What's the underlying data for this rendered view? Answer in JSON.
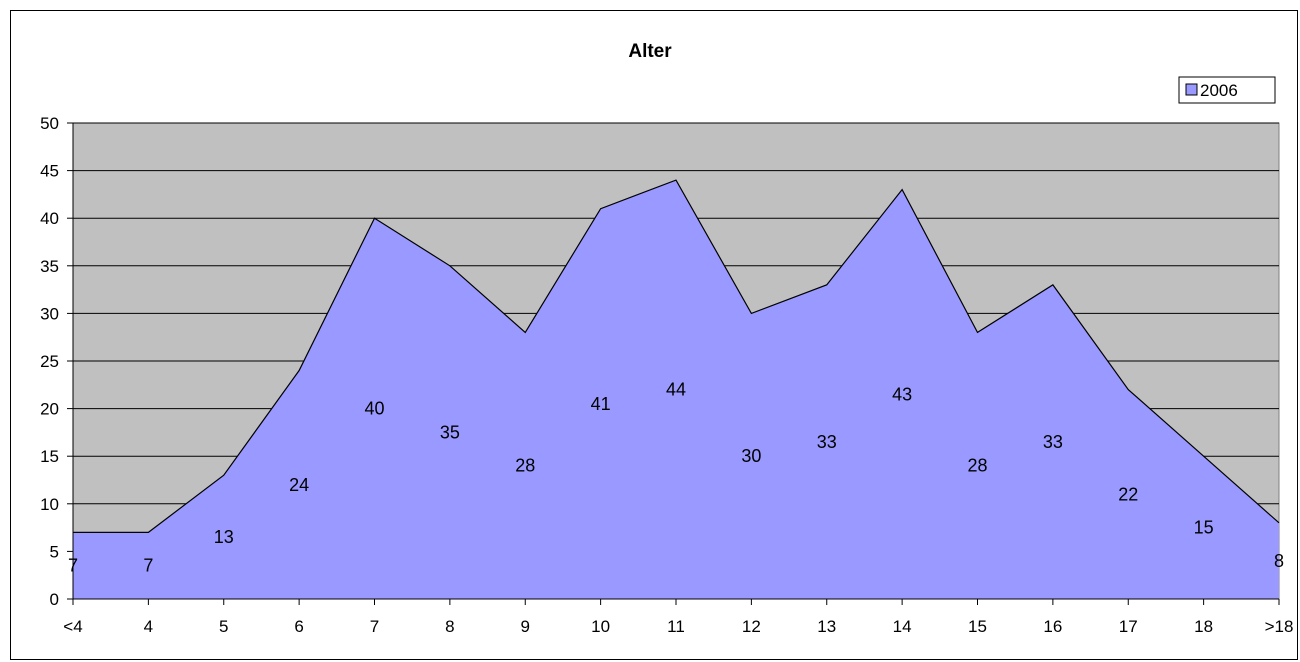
{
  "chart_data": {
    "type": "area",
    "title": "Alter",
    "xlabel": "",
    "ylabel": "",
    "categories": [
      "<4",
      "4",
      "5",
      "6",
      "7",
      "8",
      "9",
      "10",
      "11",
      "12",
      "13",
      "14",
      "15",
      "16",
      "17",
      "18",
      ">18"
    ],
    "series": [
      {
        "name": "2006",
        "values": [
          7,
          7,
          13,
          24,
          40,
          35,
          28,
          41,
          44,
          30,
          33,
          43,
          28,
          33,
          22,
          15,
          8
        ]
      }
    ],
    "ylim": [
      0,
      50
    ],
    "yticks": [
      "0",
      "5",
      "10",
      "15",
      "20",
      "25",
      "30",
      "35",
      "40",
      "45",
      "50"
    ],
    "grid": true,
    "legend_position": "top-right",
    "colors": {
      "area_fill": "#9999ff",
      "plot_background": "#c0c0c0",
      "line": "#000000"
    }
  }
}
